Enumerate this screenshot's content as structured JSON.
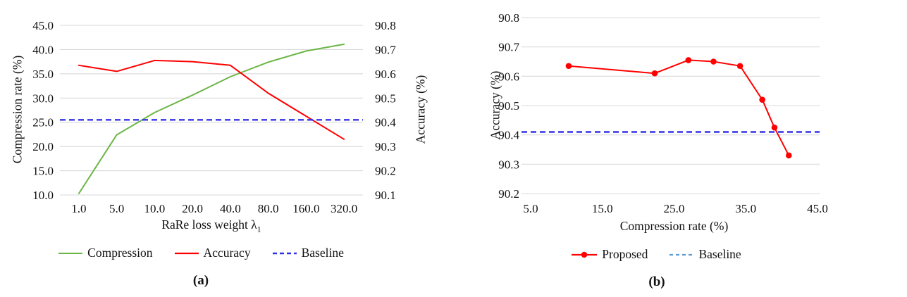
{
  "figure": {
    "background": "#ffffff",
    "grid_color": "#D9D9D9",
    "text_color": "#111111"
  },
  "chart_data": [
    {
      "id": "a",
      "type": "line",
      "x_type": "categorical",
      "title": "",
      "caption": "(a)",
      "xlabel": "RaRe loss weight λ",
      "xlabel_sub": "1",
      "ylabel_left": "Compression rate (%)",
      "ylabel_right": "Accuracy (%)",
      "categories": [
        "1.0",
        "5.0",
        "10.0",
        "20.0",
        "40.0",
        "80.0",
        "160.0",
        "320.0"
      ],
      "yticks_left": [
        "45.0",
        "40.0",
        "35.0",
        "30.0",
        "25.0",
        "20.0",
        "15.0",
        "10.0"
      ],
      "yticks_right": [
        "90.8",
        "90.7",
        "90.6",
        "90.5",
        "90.4",
        "90.3",
        "90.2",
        "90.1"
      ],
      "ylim_left": [
        10,
        45
      ],
      "ylim_right": [
        90.1,
        90.8
      ],
      "grid": "horizontal",
      "legend_position": "bottom",
      "series": [
        {
          "name": "Compression",
          "axis": "left",
          "color": "#6CB647",
          "style": "solid",
          "values": [
            10.3,
            22.4,
            27.0,
            30.6,
            34.4,
            37.4,
            39.7,
            41.1
          ]
        },
        {
          "name": "Accuracy",
          "axis": "right",
          "color": "#FF0000",
          "style": "solid",
          "values": [
            90.635,
            90.61,
            90.655,
            90.65,
            90.635,
            90.52,
            90.425,
            90.33
          ]
        },
        {
          "name": "Baseline",
          "axis": "right",
          "color": "#3333E6",
          "style": "dashed",
          "constant": 90.41
        }
      ]
    },
    {
      "id": "b",
      "type": "line",
      "x_type": "numeric",
      "title": "",
      "caption": "(b)",
      "xlabel": "Compression rate (%)",
      "xlabel_sub": "",
      "ylabel_left": "Accuracy (%)",
      "xticks": [
        "5.0",
        "15.0",
        "25.0",
        "35.0",
        "45.0"
      ],
      "yticks_left": [
        "90.8",
        "90.7",
        "90.6",
        "90.5",
        "90.4",
        "90.3",
        "90.2"
      ],
      "xlim": [
        5,
        45
      ],
      "ylim_left": [
        90.2,
        90.8
      ],
      "grid": "horizontal",
      "legend_position": "bottom",
      "series": [
        {
          "name": "Proposed",
          "axis": "left",
          "color": "#FF0000",
          "style": "solid",
          "marker": "circle",
          "x": [
            10.3,
            22.3,
            27.0,
            30.5,
            34.2,
            37.3,
            39.0,
            41.0
          ],
          "values": [
            90.635,
            90.61,
            90.655,
            90.65,
            90.635,
            90.52,
            90.425,
            90.33
          ]
        },
        {
          "name": "Baseline",
          "axis": "left",
          "color": "#3333E6",
          "legend_color": "#5B9BD5",
          "style": "dashed",
          "constant": 90.41
        }
      ]
    }
  ]
}
